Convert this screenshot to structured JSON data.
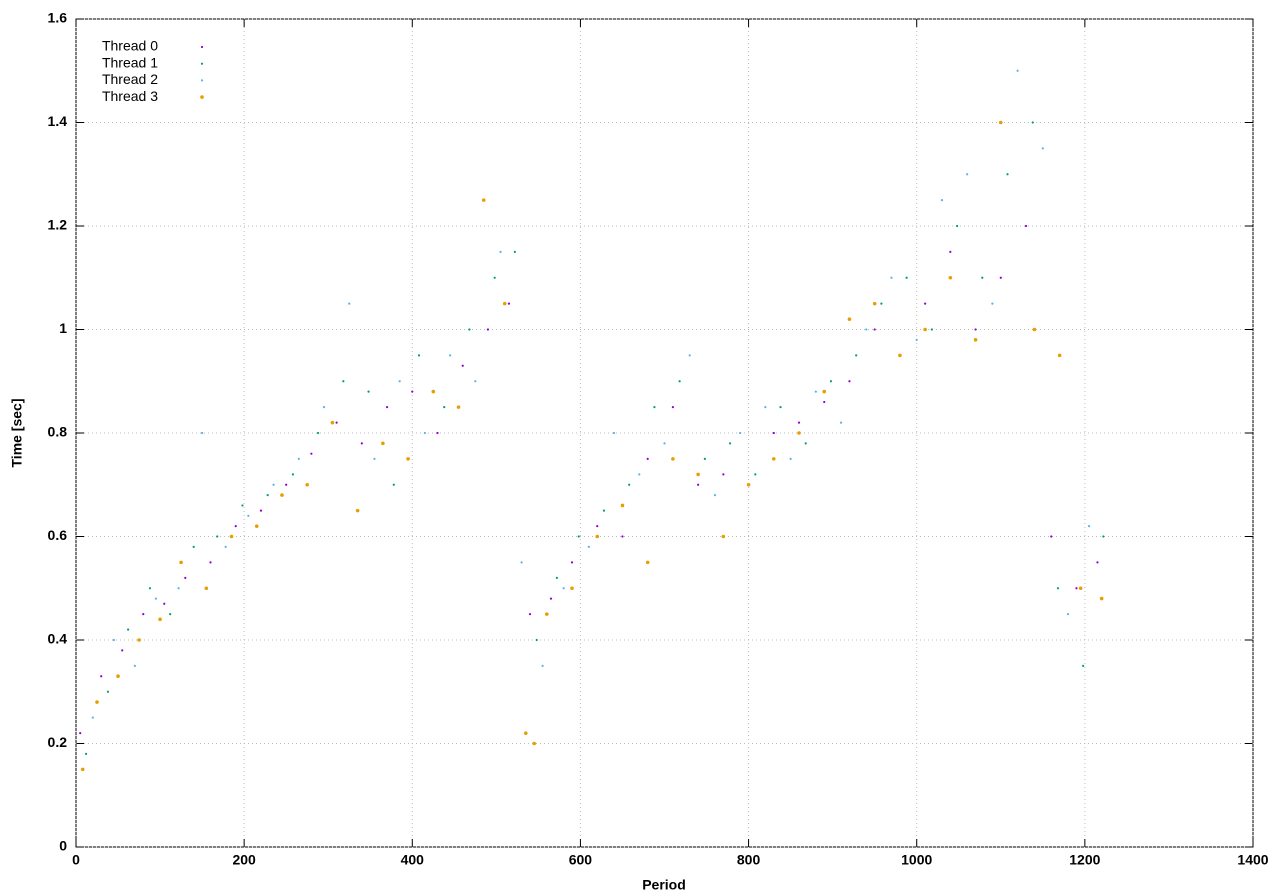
{
  "chart_data": {
    "type": "scatter",
    "xlabel": "Period",
    "ylabel": "Time [sec]",
    "xlim": [
      0,
      1400
    ],
    "ylim": [
      0,
      1.6
    ],
    "xticks": [
      0,
      200,
      400,
      600,
      800,
      1000,
      1200,
      1400
    ],
    "yticks": [
      0,
      0.2,
      0.4,
      0.6,
      0.8,
      1,
      1.2,
      1.4,
      1.6
    ],
    "grid": true,
    "legend": "top-left",
    "series": [
      {
        "name": "Thread 0",
        "color": "#9400d3",
        "x": [
          5,
          30,
          55,
          80,
          105,
          130,
          160,
          190,
          220,
          250,
          280,
          310,
          340,
          370,
          400,
          430,
          460,
          490,
          515,
          540,
          565,
          590,
          620,
          650,
          680,
          710,
          740,
          770,
          800,
          830,
          860,
          890,
          920,
          950,
          980,
          1010,
          1040,
          1070,
          1100,
          1130,
          1160,
          1190,
          1215
        ],
        "values": [
          0.22,
          0.33,
          0.38,
          0.45,
          0.47,
          0.52,
          0.55,
          0.62,
          0.65,
          0.7,
          0.76,
          0.82,
          0.78,
          0.85,
          0.88,
          0.8,
          0.93,
          1.0,
          1.05,
          0.45,
          0.48,
          0.55,
          0.62,
          0.6,
          0.75,
          0.85,
          0.7,
          0.72,
          0.7,
          0.8,
          0.82,
          0.86,
          0.9,
          1.0,
          0.95,
          1.05,
          1.15,
          1.0,
          1.1,
          1.2,
          0.6,
          0.5,
          0.55
        ]
      },
      {
        "name": "Thread 1",
        "color": "#009e73",
        "x": [
          12,
          38,
          62,
          88,
          112,
          140,
          168,
          198,
          228,
          258,
          288,
          318,
          348,
          378,
          408,
          438,
          468,
          498,
          522,
          548,
          572,
          598,
          628,
          658,
          688,
          718,
          748,
          778,
          808,
          838,
          868,
          898,
          928,
          958,
          988,
          1018,
          1048,
          1078,
          1108,
          1138,
          1168,
          1198,
          1222
        ],
        "values": [
          0.18,
          0.3,
          0.42,
          0.5,
          0.45,
          0.58,
          0.6,
          0.66,
          0.68,
          0.72,
          0.8,
          0.9,
          0.88,
          0.7,
          0.95,
          0.85,
          1.0,
          1.1,
          1.15,
          0.4,
          0.52,
          0.6,
          0.65,
          0.7,
          0.85,
          0.9,
          0.75,
          0.78,
          0.72,
          0.85,
          0.78,
          0.9,
          0.95,
          1.05,
          1.1,
          1.0,
          1.2,
          1.1,
          1.3,
          1.4,
          0.5,
          0.35,
          0.6
        ]
      },
      {
        "name": "Thread 2",
        "color": "#56b4e9",
        "x": [
          20,
          45,
          70,
          95,
          122,
          150,
          178,
          205,
          235,
          265,
          295,
          325,
          355,
          385,
          415,
          445,
          475,
          505,
          530,
          555,
          580,
          610,
          640,
          670,
          700,
          730,
          760,
          790,
          820,
          850,
          880,
          910,
          940,
          970,
          1000,
          1030,
          1060,
          1090,
          1120,
          1150,
          1180,
          1205
        ],
        "values": [
          0.25,
          0.4,
          0.35,
          0.48,
          0.5,
          0.8,
          0.58,
          0.64,
          0.7,
          0.75,
          0.85,
          1.05,
          0.75,
          0.9,
          0.8,
          0.95,
          0.9,
          1.15,
          0.55,
          0.35,
          0.5,
          0.58,
          0.8,
          0.72,
          0.78,
          0.95,
          0.68,
          0.8,
          0.85,
          0.75,
          0.88,
          0.82,
          1.0,
          1.1,
          0.98,
          1.25,
          1.3,
          1.05,
          1.5,
          1.35,
          0.45,
          0.62
        ]
      },
      {
        "name": "Thread 3",
        "color": "#e69f00",
        "x": [
          8,
          25,
          50,
          75,
          100,
          125,
          155,
          185,
          215,
          245,
          275,
          305,
          335,
          365,
          395,
          425,
          455,
          485,
          510,
          535,
          545,
          560,
          590,
          620,
          650,
          680,
          710,
          740,
          770,
          800,
          830,
          860,
          890,
          920,
          950,
          980,
          1010,
          1040,
          1070,
          1100,
          1140,
          1170,
          1195,
          1220
        ],
        "values": [
          0.15,
          0.28,
          0.33,
          0.4,
          0.44,
          0.55,
          0.5,
          0.6,
          0.62,
          0.68,
          0.7,
          0.82,
          0.65,
          0.78,
          0.75,
          0.88,
          0.85,
          1.25,
          1.05,
          0.22,
          0.2,
          0.45,
          0.5,
          0.6,
          0.66,
          0.55,
          0.75,
          0.72,
          0.6,
          0.7,
          0.75,
          0.8,
          0.88,
          1.02,
          1.05,
          0.95,
          1.0,
          1.1,
          0.98,
          1.4,
          1.0,
          0.95,
          0.5,
          0.48
        ]
      }
    ]
  }
}
